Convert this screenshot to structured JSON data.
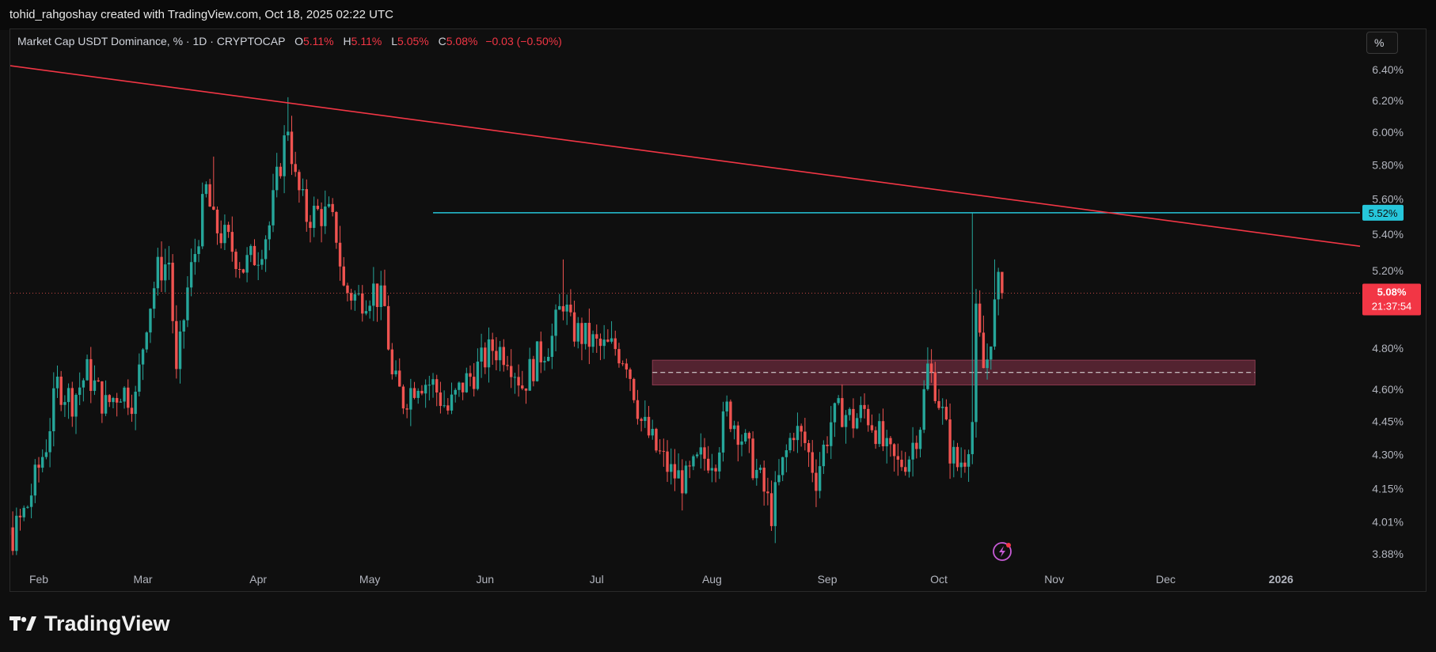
{
  "header": {
    "attribution": "tohid_rahgoshay created with TradingView.com, Oct 18, 2025 02:22 UTC"
  },
  "legend": {
    "symbol": "Market Cap USDT Dominance, % · 1D · CRYPTOCAP",
    "open_label": "O",
    "open": "5.11%",
    "high_label": "H",
    "high": "5.11%",
    "low_label": "L",
    "low": "5.05%",
    "close_label": "C",
    "close": "5.08%",
    "change": "−0.03 (−0.50%)"
  },
  "scale_button": {
    "label": "%"
  },
  "footer": {
    "brand": "TradingView"
  },
  "colors": {
    "background": "#0f0f0f",
    "up": "#26a69a",
    "down": "#ef5350",
    "trendline": "#f23645",
    "resistance": "#26c6da",
    "zone_fill": "#6b2b3c",
    "price_badge": "#f23645"
  },
  "chart_data": {
    "type": "candlestick",
    "y_scale": "log",
    "ylim": [
      3.85,
      6.55
    ],
    "y_ticks": [
      "6.40%",
      "6.20%",
      "6.00%",
      "5.80%",
      "5.60%",
      "5.40%",
      "5.20%",
      "4.80%",
      "4.60%",
      "4.45%",
      "4.30%",
      "4.15%",
      "4.01%",
      "3.88%"
    ],
    "y_tick_values": [
      6.4,
      6.2,
      6.0,
      5.8,
      5.6,
      5.4,
      5.2,
      4.8,
      4.6,
      4.45,
      4.3,
      4.15,
      4.01,
      3.88
    ],
    "x_ticks": [
      "Feb",
      "Mar",
      "Apr",
      "May",
      "Jun",
      "Jul",
      "Aug",
      "Sep",
      "Oct",
      "Nov",
      "Dec",
      "2026"
    ],
    "x_tick_dates": [
      "2025-02-01",
      "2025-03-01",
      "2025-04-01",
      "2025-05-01",
      "2025-06-01",
      "2025-07-01",
      "2025-08-01",
      "2025-09-01",
      "2025-10-01",
      "2025-11-01",
      "2025-12-01",
      "2026-01-01"
    ],
    "last_price_label": "5.08%",
    "countdown": "21:37:54",
    "resistance_label": "5.52%",
    "resistance_value": 5.52,
    "resistance_start": "2025-05-18",
    "trendline": {
      "from": {
        "x": "2025-01-11",
        "y": 6.47
      },
      "to": {
        "x": "2026-01-23",
        "y": 5.33
      }
    },
    "zone": {
      "from": "2025-07-16",
      "to": "2025-12-25",
      "low": 4.62,
      "high": 4.74,
      "mid": 4.68
    },
    "anchors": [
      [
        "2025-01-25",
        3.95
      ],
      [
        "2025-01-29",
        4.08
      ],
      [
        "2025-02-03",
        4.35
      ],
      [
        "2025-02-06",
        4.62
      ],
      [
        "2025-02-10",
        4.55
      ],
      [
        "2025-02-14",
        4.68
      ],
      [
        "2025-02-19",
        4.52
      ],
      [
        "2025-02-23",
        4.6
      ],
      [
        "2025-02-27",
        4.55
      ],
      [
        "2025-03-02",
        4.95
      ],
      [
        "2025-03-05",
        5.2
      ],
      [
        "2025-03-08",
        5.25
      ],
      [
        "2025-03-10",
        4.65
      ],
      [
        "2025-03-13",
        5.1
      ],
      [
        "2025-03-15",
        5.3
      ],
      [
        "2025-03-18",
        5.65
      ],
      [
        "2025-03-20",
        5.45
      ],
      [
        "2025-03-24",
        5.35
      ],
      [
        "2025-03-28",
        5.22
      ],
      [
        "2025-04-01",
        5.3
      ],
      [
        "2025-04-04",
        5.45
      ],
      [
        "2025-04-06",
        5.7
      ],
      [
        "2025-04-09",
        6.05
      ],
      [
        "2025-04-11",
        5.7
      ],
      [
        "2025-04-14",
        5.5
      ],
      [
        "2025-04-17",
        5.52
      ],
      [
        "2025-04-20",
        5.5
      ],
      [
        "2025-04-22",
        5.4
      ],
      [
        "2025-04-24",
        5.1
      ],
      [
        "2025-04-28",
        5.05
      ],
      [
        "2025-05-02",
        5.1
      ],
      [
        "2025-05-05",
        5.0
      ],
      [
        "2025-05-07",
        4.65
      ],
      [
        "2025-05-10",
        4.55
      ],
      [
        "2025-05-14",
        4.65
      ],
      [
        "2025-05-18",
        4.62
      ],
      [
        "2025-05-22",
        4.5
      ],
      [
        "2025-05-26",
        4.62
      ],
      [
        "2025-05-30",
        4.7
      ],
      [
        "2025-06-03",
        4.8
      ],
      [
        "2025-06-07",
        4.78
      ],
      [
        "2025-06-11",
        4.62
      ],
      [
        "2025-06-15",
        4.75
      ],
      [
        "2025-06-19",
        4.85
      ],
      [
        "2025-06-22",
        5.05
      ],
      [
        "2025-06-24",
        4.9
      ],
      [
        "2025-06-28",
        4.85
      ],
      [
        "2025-07-02",
        4.8
      ],
      [
        "2025-07-06",
        4.8
      ],
      [
        "2025-07-09",
        4.75
      ],
      [
        "2025-07-13",
        4.45
      ],
      [
        "2025-07-17",
        4.32
      ],
      [
        "2025-07-21",
        4.22
      ],
      [
        "2025-07-25",
        4.18
      ],
      [
        "2025-07-29",
        4.28
      ],
      [
        "2025-08-02",
        4.3
      ],
      [
        "2025-08-05",
        4.5
      ],
      [
        "2025-08-08",
        4.42
      ],
      [
        "2025-08-11",
        4.3
      ],
      [
        "2025-08-14",
        4.18
      ],
      [
        "2025-08-17",
        4.05
      ],
      [
        "2025-08-20",
        4.25
      ],
      [
        "2025-08-23",
        4.42
      ],
      [
        "2025-08-26",
        4.35
      ],
      [
        "2025-08-29",
        4.2
      ],
      [
        "2025-09-02",
        4.45
      ],
      [
        "2025-09-05",
        4.5
      ],
      [
        "2025-09-08",
        4.45
      ],
      [
        "2025-09-11",
        4.5
      ],
      [
        "2025-09-14",
        4.42
      ],
      [
        "2025-09-17",
        4.3
      ],
      [
        "2025-09-20",
        4.25
      ],
      [
        "2025-09-23",
        4.3
      ],
      [
        "2025-09-26",
        4.45
      ],
      [
        "2025-09-28",
        4.7
      ],
      [
        "2025-09-30",
        4.62
      ],
      [
        "2025-10-02",
        4.48
      ],
      [
        "2025-10-04",
        4.32
      ],
      [
        "2025-10-06",
        4.25
      ],
      [
        "2025-10-08",
        4.3
      ],
      [
        "2025-10-10",
        4.45
      ],
      [
        "2025-10-11",
        4.95
      ],
      [
        "2025-10-13",
        4.7
      ],
      [
        "2025-10-14",
        4.75
      ],
      [
        "2025-10-15",
        4.88
      ],
      [
        "2025-10-16",
        5.0
      ],
      [
        "2025-10-17",
        5.11
      ],
      [
        "2025-10-18",
        5.08
      ]
    ],
    "spikes": [
      [
        "2025-04-09",
        6.22
      ],
      [
        "2025-10-10",
        5.52
      ],
      [
        "2025-10-16",
        5.26
      ],
      [
        "2025-06-22",
        5.26
      ],
      [
        "2025-03-20",
        5.85
      ]
    ]
  }
}
